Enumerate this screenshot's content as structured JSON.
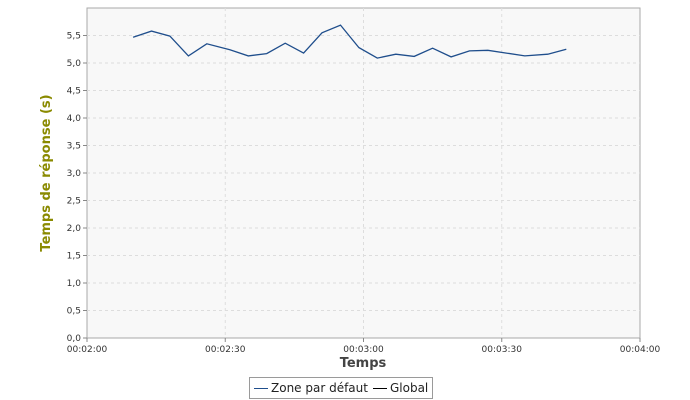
{
  "chart_data": {
    "type": "line",
    "xlabel": "Temps",
    "ylabel": "Temps de réponse (s)",
    "xlim": [
      "00:02:00",
      "00:04:00"
    ],
    "ylim": [
      0,
      6.0
    ],
    "x_ticks": [
      "00:02:00",
      "00:02:30",
      "00:03:00",
      "00:03:30",
      "00:04:00"
    ],
    "y_ticks": [
      "0,0",
      "0,5",
      "1,0",
      "1,5",
      "2,0",
      "2,5",
      "3,0",
      "3,5",
      "4,0",
      "4,5",
      "5,0",
      "5,5"
    ],
    "grid": true,
    "legend_position": "bottom",
    "series": [
      {
        "name": "Zone par défaut",
        "color": "#1f4e8c",
        "x": [
          "00:02:10",
          "00:02:14",
          "00:02:18",
          "00:02:22",
          "00:02:26",
          "00:02:31",
          "00:02:35",
          "00:02:39",
          "00:02:43",
          "00:02:47",
          "00:02:51",
          "00:02:55",
          "00:02:59",
          "00:03:03",
          "00:03:07",
          "00:03:11",
          "00:03:15",
          "00:03:19",
          "00:03:23",
          "00:03:27",
          "00:03:31",
          "00:03:35",
          "00:03:40",
          "00:03:44",
          "00:03:48",
          "00:03:52"
        ],
        "values": [
          5.47,
          5.58,
          5.49,
          5.13,
          5.35,
          5.24,
          5.13,
          5.17,
          5.36,
          5.18,
          5.55,
          5.69,
          5.28,
          5.09,
          5.16,
          5.12,
          5.27,
          5.11,
          5.22,
          5.23,
          5.18,
          5.13,
          5.16,
          5.25,
          null,
          null
        ]
      },
      {
        "name": "Global",
        "color": "#000000",
        "x": [],
        "values": []
      }
    ]
  }
}
